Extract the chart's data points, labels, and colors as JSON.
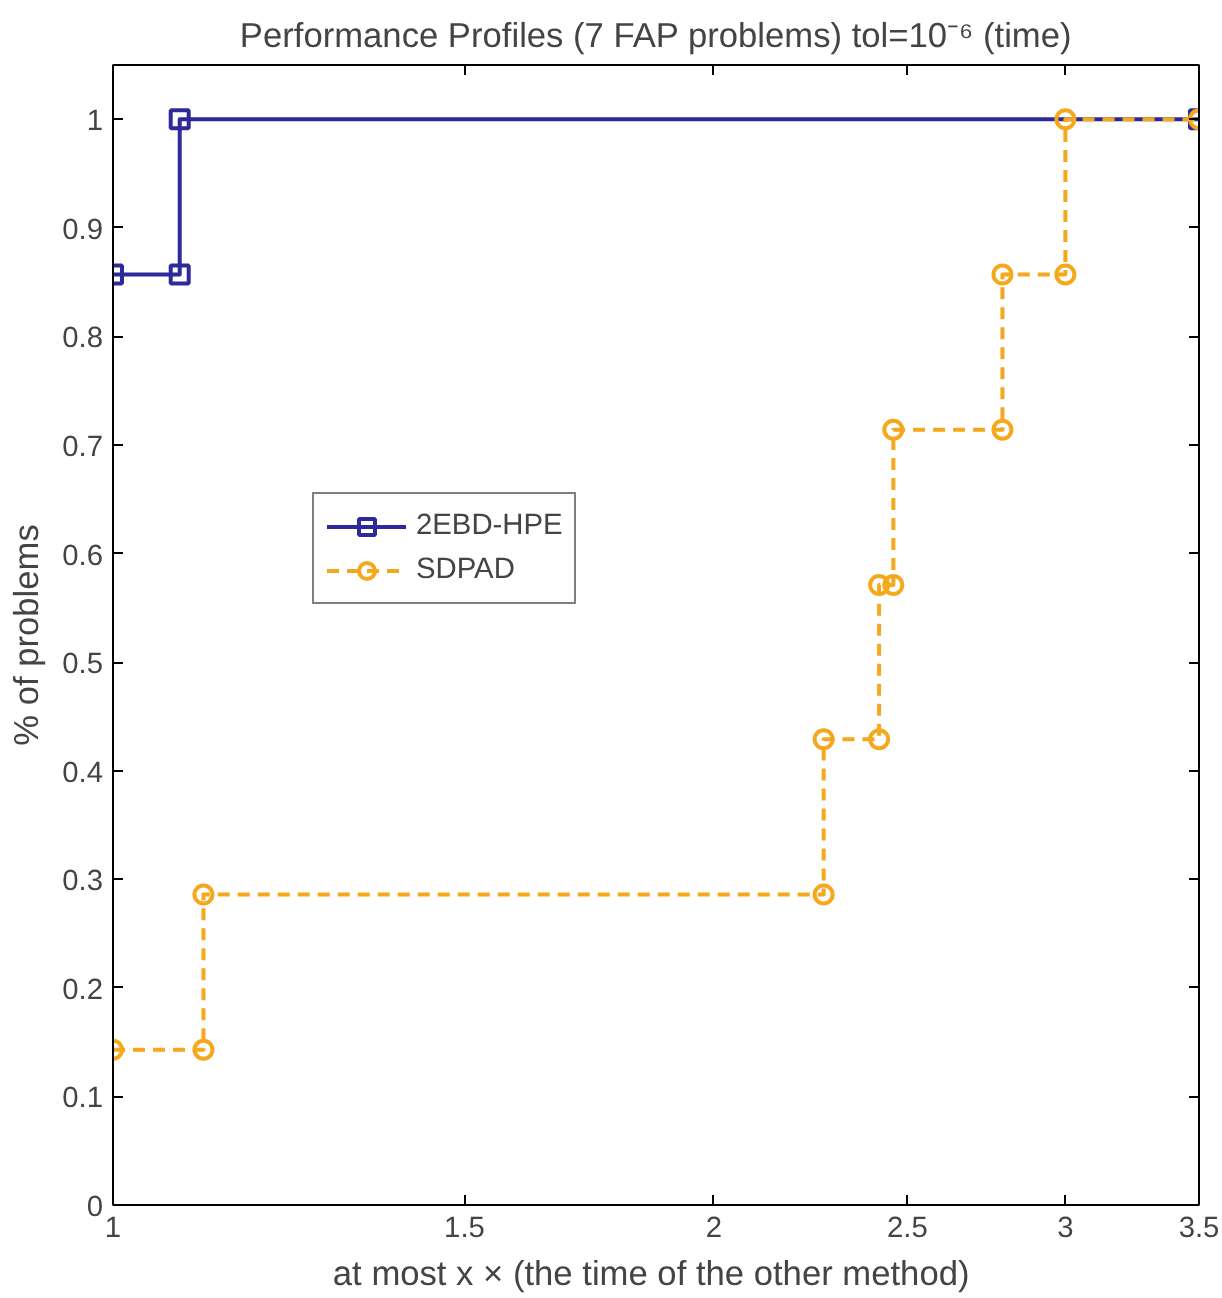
{
  "chart_data": {
    "type": "line",
    "title": "Performance Profiles (7 FAP problems) tol=10⁻⁶ (time)",
    "xlabel": "at most  x × (the time of the other method)",
    "ylabel": "% of problems",
    "log": "x",
    "xlim": [
      1,
      3.5
    ],
    "xticks": [
      1,
      1.5,
      2,
      2.5,
      3,
      3.5
    ],
    "ylim": [
      0,
      1.05
    ],
    "yticks": [
      0,
      0.1,
      0.2,
      0.3,
      0.4,
      0.5,
      0.6,
      0.7,
      0.8,
      0.9,
      1
    ],
    "grid": false,
    "legend": "left",
    "series": [
      {
        "name": "2EBD-HPE",
        "color": "#2e2a9a",
        "marker": "square",
        "line_style": "solid",
        "x": [
          1,
          1.08,
          1.08,
          3.5
        ],
        "values": [
          0.857,
          0.857,
          1.0,
          1.0
        ]
      },
      {
        "name": "SDPAD",
        "color": "#f5a81c",
        "marker": "circle",
        "line_style": "dashed",
        "x": [
          1,
          1.11,
          1.11,
          2.27,
          2.27,
          2.42,
          2.42,
          2.46,
          2.46,
          2.79,
          2.79,
          3.0,
          3.0,
          3.5
        ],
        "values": [
          0.143,
          0.143,
          0.286,
          0.286,
          0.429,
          0.429,
          0.571,
          0.571,
          0.714,
          0.714,
          0.857,
          0.857,
          1.0,
          1.0
        ]
      }
    ]
  }
}
